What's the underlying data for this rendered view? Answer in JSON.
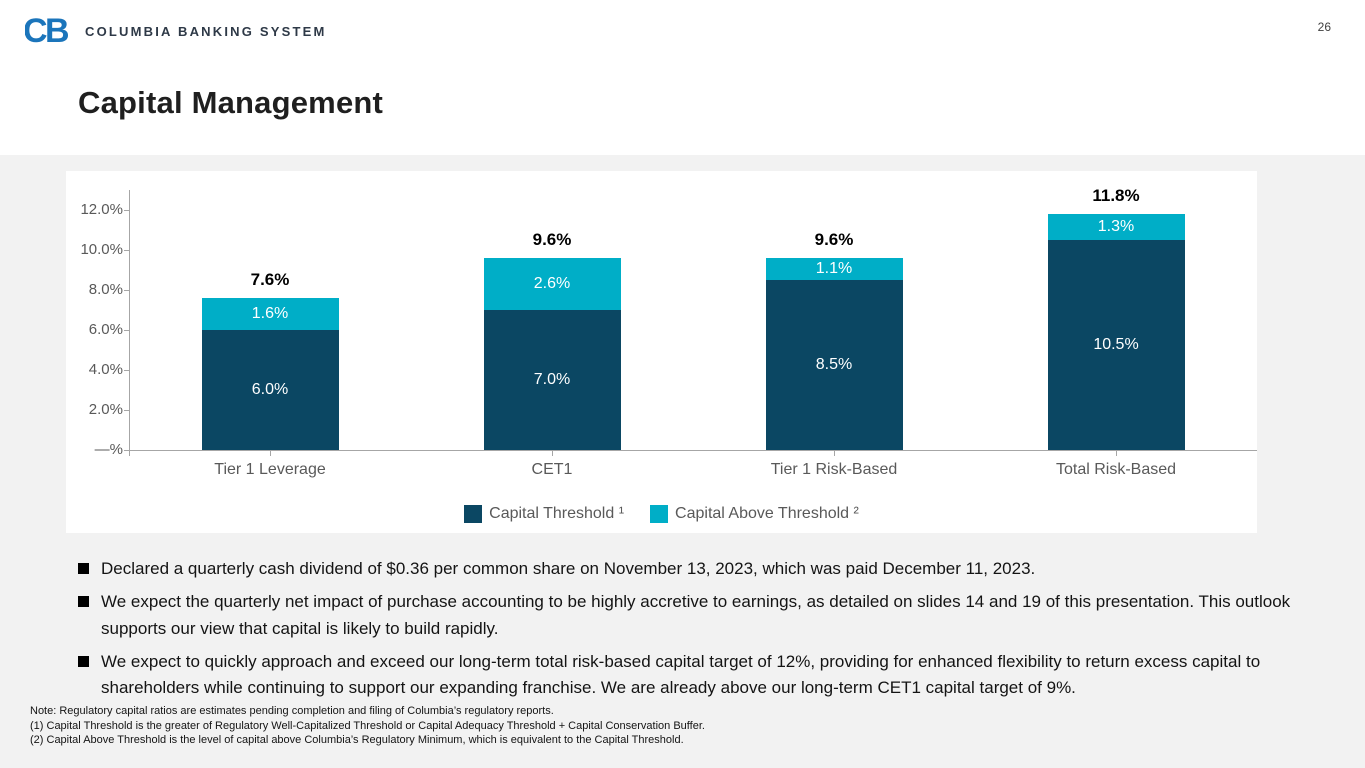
{
  "page": {
    "number": "26"
  },
  "header": {
    "logo_text": "COLUMBIA BANKING SYSTEM",
    "logo_color": "#1b75bb",
    "title": "Capital Management"
  },
  "chart_data": {
    "type": "bar",
    "stacked": true,
    "categories": [
      "Tier 1 Leverage",
      "CET1",
      "Tier 1 Risk-Based",
      "Total Risk-Based"
    ],
    "series": [
      {
        "name": "Capital Threshold ¹",
        "color": "#0b4763",
        "values": [
          6.0,
          7.0,
          8.5,
          10.5
        ],
        "labels": [
          "6.0%",
          "7.0%",
          "8.5%",
          "10.5%"
        ]
      },
      {
        "name": "Capital Above Threshold ²",
        "color": "#00aec7",
        "values": [
          1.6,
          2.6,
          1.1,
          1.3
        ],
        "labels": [
          "1.6%",
          "2.6%",
          "1.1%",
          "1.3%"
        ]
      }
    ],
    "totals": [
      "7.6%",
      "9.6%",
      "9.6%",
      "11.8%"
    ],
    "y_ticks": [
      {
        "value": 12,
        "label": "12.0%"
      },
      {
        "value": 10,
        "label": "10.0%"
      },
      {
        "value": 8,
        "label": "8.0%"
      },
      {
        "value": 6,
        "label": "6.0%"
      },
      {
        "value": 4,
        "label": "4.0%"
      },
      {
        "value": 2,
        "label": "2.0%"
      },
      {
        "value": 0,
        "label": "—%"
      }
    ],
    "ylim": [
      0,
      13
    ],
    "grid": false,
    "legend_position": "bottom",
    "title": "",
    "xlabel": "",
    "ylabel": ""
  },
  "bullets": [
    "Declared a quarterly cash dividend of $0.36 per common share on November 13, 2023, which was paid December 11, 2023.",
    "We expect the quarterly net impact of purchase accounting to be highly accretive to earnings, as detailed on slides 14 and 19 of this presentation. This outlook supports our view that capital is likely to build rapidly.",
    "We expect to quickly approach and exceed our long-term total risk-based capital target of 12%, providing for enhanced flexibility to return excess capital to shareholders while continuing to support our expanding franchise. We are already above our long-term CET1 capital target of 9%."
  ],
  "footnotes": [
    "Note: Regulatory capital ratios are estimates pending completion and filing of Columbia’s regulatory reports.",
    "(1)   Capital Threshold is the greater of Regulatory Well-Capitalized Threshold or Capital Adequacy Threshold + Capital Conservation Buffer.",
    "(2)   Capital Above Threshold is the level of capital above Columbia’s Regulatory Minimum, which is equivalent to the Capital Threshold."
  ]
}
